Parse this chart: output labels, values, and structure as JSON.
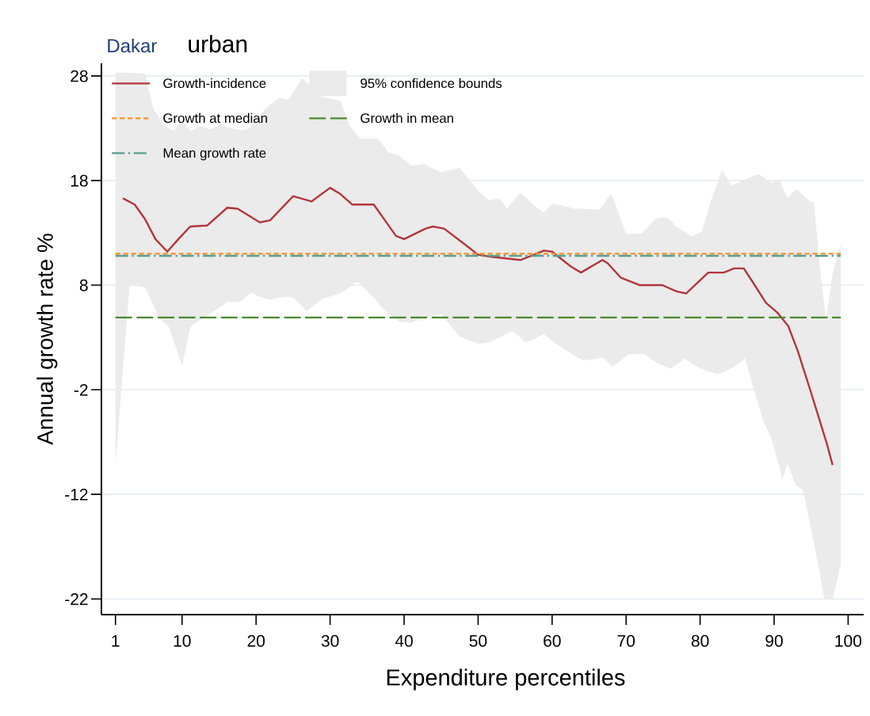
{
  "chart_data": {
    "type": "line",
    "title": "Dakar",
    "subtitle": "urban",
    "xlabel": "Expenditure percentiles",
    "ylabel": "Annual growth rate %",
    "xlim": [
      -0.9,
      102.1
    ],
    "ylim": [
      -23.5,
      29.2
    ],
    "xticks": [
      1,
      10,
      20,
      30,
      40,
      50,
      60,
      70,
      80,
      90,
      100
    ],
    "yticks": [
      -22,
      -12,
      -2,
      8,
      18,
      28
    ],
    "grid": "y",
    "legend": "top left",
    "series": [
      {
        "name": "Growth-incidence",
        "color": "#b2373c",
        "line_style": "solid",
        "x": [
          2,
          3.6,
          5.0,
          6.4,
          8.0,
          9.5,
          11.1,
          13.4,
          16.1,
          17.5,
          20.5,
          21.9,
          25.0,
          27.5,
          30.0,
          31.4,
          33.0,
          35.9,
          37.5,
          38.9,
          40.0,
          42.9,
          43.9,
          45.4,
          48.2,
          50.0,
          51.8,
          55.7,
          56.8,
          58.9,
          60.0,
          62.5,
          63.9,
          66.8,
          67.5,
          69.3,
          71.8,
          74.9,
          76.8,
          78.1,
          81.1,
          83.2,
          84.6,
          85.9,
          87.1,
          88.9,
          90.4,
          91.9,
          93.2,
          95.0,
          97.1,
          97.9
        ],
        "values": [
          16.3,
          15.7,
          14.3,
          12.4,
          11.2,
          12.4,
          13.6,
          13.7,
          15.4,
          15.3,
          14.0,
          14.2,
          16.5,
          16.0,
          17.3,
          16.7,
          15.7,
          15.7,
          14.1,
          12.7,
          12.4,
          13.4,
          13.6,
          13.4,
          11.9,
          10.9,
          10.7,
          10.4,
          10.7,
          11.3,
          11.2,
          9.8,
          9.2,
          10.4,
          10.1,
          8.7,
          8.0,
          8.0,
          7.4,
          7.2,
          9.2,
          9.2,
          9.6,
          9.6,
          8.3,
          6.3,
          5.4,
          4.1,
          1.7,
          -2.3,
          -7.1,
          -9.2
        ]
      },
      {
        "name": "95% confidence bounds",
        "type": "area",
        "color": "#ebebeb",
        "x": [
          1,
          2.9,
          5,
          5.4,
          6.1,
          6.8,
          7.5,
          8.2,
          8.9,
          10,
          11.1,
          12.5,
          13.9,
          14.7,
          15.4,
          16.1,
          17.9,
          18.9,
          19.3,
          20.4,
          21.8,
          23.2,
          24.3,
          25,
          26.2,
          26.8,
          28.9,
          31.4,
          32.6,
          33.6,
          34.1,
          36.4,
          36.8,
          37.9,
          39.3,
          41,
          42.7,
          43.2,
          45,
          47.5,
          50,
          51.4,
          52.9,
          53.9,
          54.6,
          55.7,
          56.4,
          57.1,
          58.9,
          60,
          60.7,
          62.5,
          62.9,
          64.3,
          66.3,
          66.8,
          67.9,
          68.2,
          70,
          70.4,
          72.1,
          72.5,
          73.9,
          74.3,
          75.4,
          76.1,
          76.8,
          77.9,
          78.9,
          79.6,
          80.2,
          81.4,
          82.2,
          82.9,
          83.2,
          84.3,
          84.6,
          86.1,
          87.1,
          87.9,
          88.6,
          89.6,
          90.7,
          91.1,
          91.8,
          92.9,
          93.1,
          93.9,
          94.6,
          95.4,
          96.1,
          96.8,
          97,
          97.9,
          99
        ],
        "values": [
          null,
          null,
          null,
          null,
          null,
          null,
          null,
          null,
          null,
          null,
          null,
          null,
          null,
          null,
          null,
          null,
          null,
          null,
          null,
          null,
          null,
          null,
          null,
          null,
          null,
          null,
          null,
          null,
          null,
          null,
          null,
          null,
          null,
          null,
          null,
          null,
          null,
          null,
          null,
          null,
          null,
          null,
          null,
          null,
          null,
          null,
          null,
          null,
          null,
          null,
          null,
          null,
          null,
          null,
          null,
          null,
          null,
          null,
          null,
          null,
          null,
          null,
          null,
          null,
          null,
          null,
          null,
          null,
          null,
          null,
          null,
          null,
          null,
          null,
          null,
          null,
          null,
          null,
          null,
          null,
          null,
          null,
          null,
          null,
          null,
          null,
          null,
          null,
          null,
          null,
          null,
          null,
          null,
          null,
          null
        ],
        "upper": [
          28.3,
          28.3,
          28.2,
          27.0,
          24.9,
          24.1,
          23.4,
          23.0,
          22.7,
          23.9,
          22.7,
          23.2,
          22.9,
          23.2,
          23.4,
          23.1,
          22.8,
          22.9,
          23.2,
          24.2,
          25.2,
          25.9,
          25.7,
          26.4,
          27.8,
          27.4,
          26.0,
          25.6,
          23.3,
          22.4,
          22.0,
          22.0,
          21.7,
          20.7,
          20.4,
          19.4,
          19.6,
          19.4,
          18.8,
          19.2,
          17.0,
          16.1,
          16.3,
          15.3,
          15.9,
          16.8,
          16.4,
          15.9,
          14.9,
          15.8,
          15.7,
          15.4,
          15.3,
          15.3,
          15.2,
          15.6,
          16.7,
          16.4,
          12.9,
          12.9,
          12.9,
          13.2,
          14.3,
          14.4,
          14.5,
          14.1,
          13.6,
          13.1,
          12.7,
          12.9,
          13.1,
          15.9,
          17.5,
          19.0,
          18.7,
          17.5,
          17.6,
          18.1,
          18.4,
          18.6,
          18.3,
          17.8,
          18.1,
          17.4,
          16.3,
          17.1,
          17.2,
          16.6,
          16.1,
          15.9,
          10.1,
          6.0,
          4.5,
          9.1,
          11.9
        ],
        "lower": [
          -9.2,
          8.0,
          7.8,
          7.2,
          6.1,
          5.0,
          4.5,
          4.0,
          2.6,
          0.3,
          4.0,
          4.7,
          5.3,
          5.7,
          6.0,
          6.4,
          6.4,
          7.0,
          7.3,
          6.9,
          6.6,
          6.8,
          6.9,
          6.8,
          6.0,
          5.5,
          6.7,
          7.2,
          7.8,
          8.3,
          8.1,
          6.4,
          6.0,
          5.3,
          4.5,
          4.4,
          4.9,
          5.0,
          5.2,
          3.1,
          2.4,
          2.5,
          3.0,
          3.4,
          3.6,
          3.0,
          2.5,
          2.7,
          3.3,
          2.7,
          2.3,
          1.5,
          1.3,
          0.8,
          1.0,
          1.1,
          0.4,
          0.2,
          1.2,
          1.4,
          1.4,
          1.4,
          0.7,
          0.5,
          0.2,
          0.0,
          0.4,
          1.0,
          0.5,
          0.2,
          0.0,
          -0.3,
          -0.5,
          -0.4,
          -0.3,
          0.1,
          0.2,
          1.0,
          -1.6,
          -3.5,
          -5.1,
          -6.6,
          -9.4,
          -10.6,
          -9.1,
          -11.1,
          -11.2,
          -11.6,
          -14.0,
          -16.7,
          -19.3,
          -22.0,
          -22.0,
          -22.0,
          -18.7
        ]
      },
      {
        "name": "Growth at median",
        "color": "#ff8c1a",
        "line_style": "dashed",
        "x": [
          1,
          99
        ],
        "values": [
          11.0,
          11.0
        ]
      },
      {
        "name": "Growth in mean",
        "color": "#4c8a2b",
        "line_style": "longdash",
        "x": [
          1,
          99
        ],
        "values": [
          4.9,
          4.9
        ]
      },
      {
        "name": "Mean growth rate",
        "color": "#5a9e90",
        "line_style": "dashdot",
        "x": [
          1,
          99
        ],
        "values": [
          10.8,
          10.8
        ]
      }
    ]
  }
}
